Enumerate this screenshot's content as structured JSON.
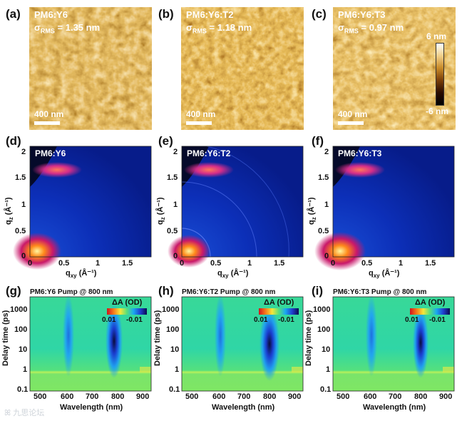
{
  "afm": [
    {
      "label": "(a)",
      "title": "PM6:Y6",
      "sigma_prefix": "σ",
      "sigma_sub": "RMS",
      "sigma_value": " = 1.35 nm",
      "scale": "400 nm"
    },
    {
      "label": "(b)",
      "title": "PM6:Y6:T2",
      "sigma_prefix": "σ",
      "sigma_sub": "RMS",
      "sigma_value": " = 1.18 nm",
      "scale": "400 nm"
    },
    {
      "label": "(c)",
      "title": "PM6:Y6:T3",
      "sigma_prefix": "σ",
      "sigma_sub": "RMS",
      "sigma_value": " = 0.97 nm",
      "scale": "400 nm"
    }
  ],
  "afm_colorbar": {
    "top": "6 nm",
    "bottom": "-6 nm"
  },
  "giwaxs": [
    {
      "label": "(d)",
      "title": "PM6:Y6"
    },
    {
      "label": "(e)",
      "title": "PM6:Y6:T2"
    },
    {
      "label": "(f)",
      "title": "PM6:Y6:T3"
    }
  ],
  "giwaxs_axes": {
    "ylabel_main": "q",
    "ylabel_sub": "z",
    "ylabel_unit": " (Å⁻¹)",
    "xlabel_main": "q",
    "xlabel_sub": "xy",
    "xlabel_unit": " (Å⁻¹)",
    "yticks": [
      "2",
      "1.5",
      "1",
      "0.5",
      "0"
    ],
    "xticks": [
      "0",
      "0.5",
      "1",
      "1.5"
    ]
  },
  "ta": [
    {
      "label": "(g)",
      "title": "PM6:Y6 Pump @ 800 nm"
    },
    {
      "label": "(h)",
      "title": "PM6:Y6:T2 Pump @ 800 nm"
    },
    {
      "label": "(i)",
      "title": "PM6:Y6:T3 Pump @ 800 nm"
    }
  ],
  "ta_axes": {
    "ylabel": "Delay time (ps)",
    "xlabel": "Wavelength (nm)",
    "yticks": [
      "1000",
      "100",
      "10",
      "1",
      "0.1"
    ],
    "xticks": [
      "500",
      "600",
      "700",
      "800",
      "900"
    ],
    "legend_title": "ΔA (OD)",
    "legend_min": "0.01",
    "legend_max": "-0.01"
  },
  "watermark": "ꕤ 九思论坛"
}
